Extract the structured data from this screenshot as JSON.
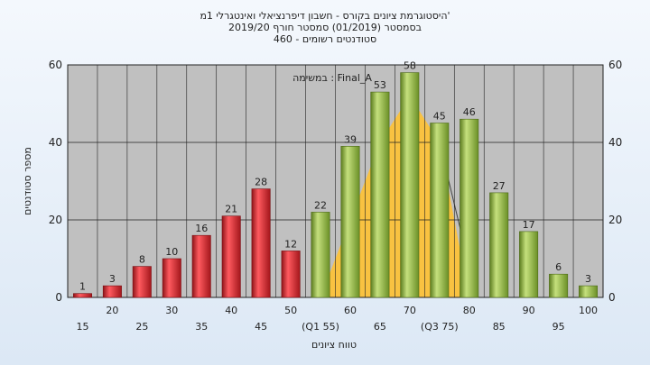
{
  "chart_data": {
    "type": "bar",
    "title": "היסטוגרמת ציונים בקורס - חשבון דיפרנציאלי ואינטגרלי 1מ'",
    "subtitle_1": "בסמסטר (01/2019) סמסטר חורף 2019/20",
    "subtitle_2": "סטודנטים רשומים - 460",
    "annotation": "במשימה : Final_A",
    "xlabel": "טווח ציונים",
    "ylabel": "מספר סטודנטים",
    "ylim": [
      0,
      60
    ],
    "yticks": [
      0,
      20,
      40,
      60
    ],
    "grid": true,
    "categories": [
      "15",
      "20",
      "25",
      "30",
      "35",
      "40",
      "45",
      "50",
      "(Q1 55)",
      "60",
      "65",
      "70",
      "(Q3 75)",
      "80",
      "85",
      "90",
      "95",
      "100"
    ],
    "values": [
      1,
      3,
      8,
      10,
      16,
      21,
      28,
      12,
      22,
      39,
      53,
      58,
      45,
      46,
      27,
      17,
      6,
      3
    ],
    "bar_colors": [
      "#d9252b",
      "#d9252b",
      "#d9252b",
      "#d9252b",
      "#d9252b",
      "#d9252b",
      "#d9252b",
      "#d9252b",
      "#8ab83a",
      "#8ab83a",
      "#8ab83a",
      "#8ab83a",
      "#8ab83a",
      "#8ab83a",
      "#8ab83a",
      "#8ab83a",
      "#8ab83a",
      "#8ab83a"
    ],
    "background_area": {
      "color": "#ffc233",
      "x": [
        55,
        60,
        65,
        70,
        75,
        80
      ],
      "y": [
        0,
        20,
        40,
        52,
        40,
        0
      ]
    }
  }
}
